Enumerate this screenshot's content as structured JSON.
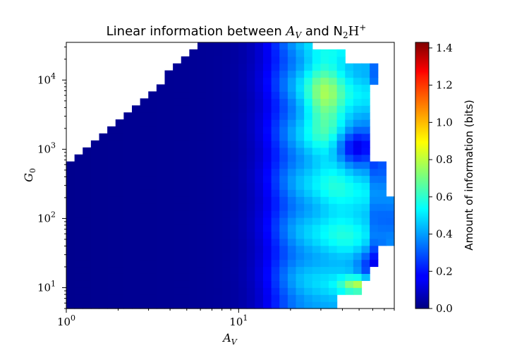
{
  "chart_data": {
    "type": "heatmap",
    "title_parts": [
      "Linear information between ",
      "A",
      "V",
      " and N",
      "2",
      "H",
      "+"
    ],
    "xlabel_parts": [
      "A",
      "V"
    ],
    "ylabel_parts": [
      "G",
      "0"
    ],
    "x_scale": "log",
    "y_scale": "log",
    "xlim": [
      1,
      80
    ],
    "ylim": [
      5,
      35000
    ],
    "x_ticks": [
      {
        "base": "10",
        "exp": "0",
        "value": 1
      },
      {
        "base": "10",
        "exp": "1",
        "value": 10
      }
    ],
    "y_ticks": [
      {
        "base": "10",
        "exp": "1",
        "value": 10
      },
      {
        "base": "10",
        "exp": "2",
        "value": 100
      },
      {
        "base": "10",
        "exp": "3",
        "value": 1000
      },
      {
        "base": "10",
        "exp": "4",
        "value": 10000
      }
    ],
    "grid": false,
    "colorbar": {
      "label": "Amount of information (bits)",
      "colormap": "jet",
      "range": [
        0,
        1.43
      ],
      "ticks": [
        "0.0",
        "0.2",
        "0.4",
        "0.6",
        "0.8",
        "1.0",
        "1.2",
        "1.4"
      ]
    },
    "grid_cells": [
      40,
      38
    ],
    "data_summary": {
      "low_av_region": 0.03,
      "peak_region_av": [
        25,
        40
      ],
      "peak_region_g0": [
        2000,
        20000
      ],
      "peak_value": 0.75,
      "secondary_peak_g0": 11,
      "secondary_peak_value": 0.78
    }
  },
  "colors": {
    "low": "#00007f",
    "mid": "#00ffff",
    "high": "#7f0000",
    "axis": "#000000"
  }
}
